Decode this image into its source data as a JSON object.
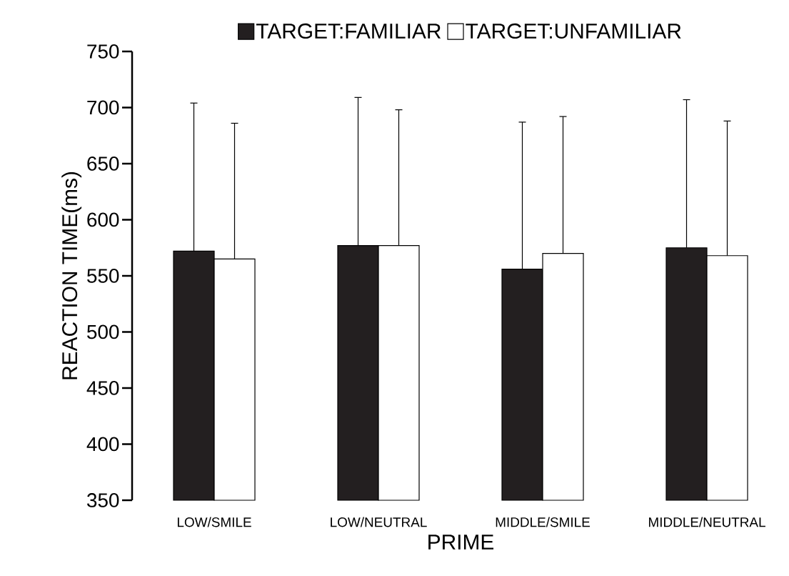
{
  "chart_data": {
    "type": "bar",
    "xlabel": "PRIME",
    "ylabel": "REACTION TIME(ms)",
    "categories": [
      "LOW/SMILE",
      "LOW/NEUTRAL",
      "MIDDLE/SMILE",
      "MIDDLE/NEUTRAL"
    ],
    "series": [
      {
        "name": "TARGET:FAMILIAR",
        "color": "#231f20",
        "values": [
          572,
          577,
          556,
          575
        ],
        "errors": [
          132,
          132,
          131,
          132
        ]
      },
      {
        "name": "TARGET:UNFAMILIAR",
        "color": "#ffffff",
        "values": [
          565,
          577,
          570,
          568
        ],
        "errors": [
          121,
          121,
          122,
          120
        ]
      }
    ],
    "ylim": [
      350,
      750
    ],
    "yticks": [
      350,
      400,
      450,
      500,
      550,
      600,
      650,
      700,
      750
    ],
    "legend": "top",
    "grid": false
  }
}
